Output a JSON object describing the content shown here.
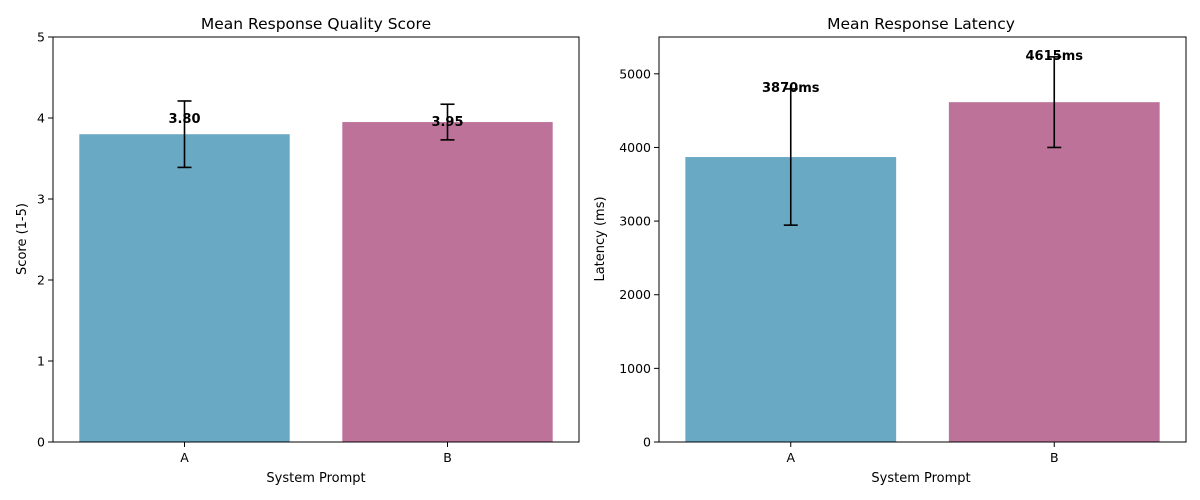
{
  "chart_data": [
    {
      "type": "bar",
      "title": "Mean Response Quality Score",
      "xlabel": "System Prompt",
      "ylabel": "Score (1-5)",
      "categories": [
        "A",
        "B"
      ],
      "values": [
        3.8,
        3.95
      ],
      "errors": [
        0.41,
        0.22
      ],
      "data_labels": [
        "3.80",
        "3.95"
      ],
      "ylim": [
        0,
        5
      ],
      "yticks": [
        0,
        1,
        2,
        3,
        4,
        5
      ],
      "colors": [
        "#6aa9c4",
        "#bd7399"
      ],
      "grid": false
    },
    {
      "type": "bar",
      "title": "Mean Response Latency",
      "xlabel": "System Prompt",
      "ylabel": "Latency (ms)",
      "categories": [
        "A",
        "B"
      ],
      "values": [
        3870,
        4615
      ],
      "errors": [
        925,
        615
      ],
      "data_labels": [
        "3870ms",
        "4615ms"
      ],
      "ylim": [
        0,
        5500
      ],
      "yticks": [
        0,
        1000,
        2000,
        3000,
        4000,
        5000
      ],
      "colors": [
        "#6aa9c4",
        "#bd7399"
      ],
      "grid": false
    }
  ]
}
